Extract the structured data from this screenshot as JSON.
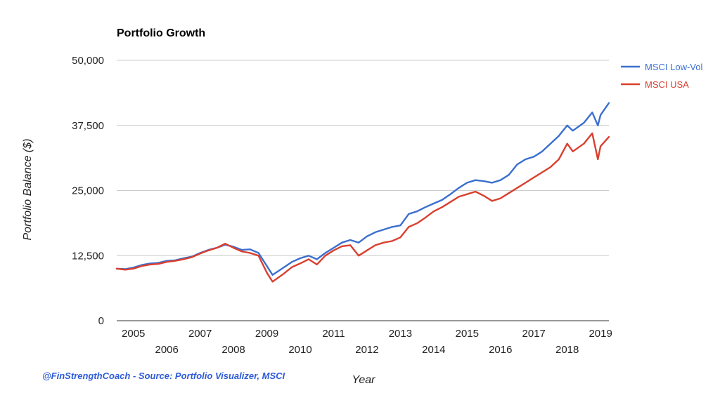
{
  "chart_data": {
    "type": "line",
    "title": "Portfolio Growth",
    "xlabel": "Year",
    "ylabel": "Portfolio Balance ($)",
    "ylim": [
      0,
      50000
    ],
    "yticks": [
      0,
      12500,
      25000,
      37500,
      50000
    ],
    "ytick_labels": [
      "0",
      "12,500",
      "25,000",
      "37,500",
      "50,000"
    ],
    "xlim": [
      2004.5,
      2019.25
    ],
    "xticks_upper": [
      {
        "x": 2005,
        "label": "2005"
      },
      {
        "x": 2007,
        "label": "2007"
      },
      {
        "x": 2009,
        "label": "2009"
      },
      {
        "x": 2011,
        "label": "2011"
      },
      {
        "x": 2013,
        "label": "2013"
      },
      {
        "x": 2015,
        "label": "2015"
      },
      {
        "x": 2017,
        "label": "2017"
      },
      {
        "x": 2019,
        "label": "2019"
      }
    ],
    "xticks_lower": [
      {
        "x": 2006,
        "label": "2006"
      },
      {
        "x": 2008,
        "label": "2008"
      },
      {
        "x": 2010,
        "label": "2010"
      },
      {
        "x": 2012,
        "label": "2012"
      },
      {
        "x": 2014,
        "label": "2014"
      },
      {
        "x": 2016,
        "label": "2016"
      },
      {
        "x": 2018,
        "label": "2018"
      }
    ],
    "grid": true,
    "legend_position": "right",
    "series": [
      {
        "name": "MSCI Low-Vol",
        "color": "#3b6fce",
        "points": [
          [
            2004.5,
            10000
          ],
          [
            2004.75,
            9900
          ],
          [
            2005.0,
            10200
          ],
          [
            2005.25,
            10700
          ],
          [
            2005.5,
            11000
          ],
          [
            2005.75,
            11100
          ],
          [
            2006.0,
            11500
          ],
          [
            2006.25,
            11600
          ],
          [
            2006.5,
            12000
          ],
          [
            2006.75,
            12300
          ],
          [
            2007.0,
            13000
          ],
          [
            2007.25,
            13600
          ],
          [
            2007.5,
            14000
          ],
          [
            2007.75,
            14600
          ],
          [
            2008.0,
            14200
          ],
          [
            2008.25,
            13600
          ],
          [
            2008.5,
            13700
          ],
          [
            2008.75,
            13000
          ],
          [
            2009.0,
            10500
          ],
          [
            2009.17,
            8800
          ],
          [
            2009.5,
            10200
          ],
          [
            2009.75,
            11300
          ],
          [
            2010.0,
            12000
          ],
          [
            2010.25,
            12500
          ],
          [
            2010.5,
            11800
          ],
          [
            2010.75,
            13000
          ],
          [
            2011.0,
            14000
          ],
          [
            2011.25,
            15000
          ],
          [
            2011.5,
            15500
          ],
          [
            2011.75,
            15000
          ],
          [
            2012.0,
            16200
          ],
          [
            2012.25,
            17000
          ],
          [
            2012.5,
            17500
          ],
          [
            2012.75,
            18000
          ],
          [
            2013.0,
            18300
          ],
          [
            2013.25,
            20500
          ],
          [
            2013.5,
            21000
          ],
          [
            2013.75,
            21800
          ],
          [
            2014.0,
            22500
          ],
          [
            2014.25,
            23200
          ],
          [
            2014.5,
            24300
          ],
          [
            2014.75,
            25500
          ],
          [
            2015.0,
            26500
          ],
          [
            2015.25,
            27000
          ],
          [
            2015.5,
            26800
          ],
          [
            2015.75,
            26500
          ],
          [
            2016.0,
            27000
          ],
          [
            2016.25,
            28000
          ],
          [
            2016.5,
            30000
          ],
          [
            2016.75,
            31000
          ],
          [
            2017.0,
            31500
          ],
          [
            2017.25,
            32500
          ],
          [
            2017.5,
            34000
          ],
          [
            2017.75,
            35500
          ],
          [
            2018.0,
            37500
          ],
          [
            2018.17,
            36500
          ],
          [
            2018.5,
            38000
          ],
          [
            2018.75,
            40000
          ],
          [
            2018.92,
            37500
          ],
          [
            2019.0,
            39500
          ],
          [
            2019.25,
            41800
          ]
        ]
      },
      {
        "name": "MSCI USA",
        "color": "#d9402f",
        "points": [
          [
            2004.5,
            10000
          ],
          [
            2004.75,
            9800
          ],
          [
            2005.0,
            10000
          ],
          [
            2005.25,
            10500
          ],
          [
            2005.5,
            10800
          ],
          [
            2005.75,
            10900
          ],
          [
            2006.0,
            11300
          ],
          [
            2006.25,
            11500
          ],
          [
            2006.5,
            11800
          ],
          [
            2006.75,
            12200
          ],
          [
            2007.0,
            12900
          ],
          [
            2007.25,
            13500
          ],
          [
            2007.5,
            14000
          ],
          [
            2007.75,
            14800
          ],
          [
            2008.0,
            14000
          ],
          [
            2008.25,
            13300
          ],
          [
            2008.5,
            13000
          ],
          [
            2008.75,
            12500
          ],
          [
            2009.0,
            9200
          ],
          [
            2009.17,
            7500
          ],
          [
            2009.5,
            9000
          ],
          [
            2009.75,
            10300
          ],
          [
            2010.0,
            11000
          ],
          [
            2010.25,
            11800
          ],
          [
            2010.5,
            10800
          ],
          [
            2010.75,
            12500
          ],
          [
            2011.0,
            13500
          ],
          [
            2011.25,
            14300
          ],
          [
            2011.5,
            14500
          ],
          [
            2011.75,
            12500
          ],
          [
            2012.0,
            13500
          ],
          [
            2012.25,
            14500
          ],
          [
            2012.5,
            15000
          ],
          [
            2012.75,
            15300
          ],
          [
            2013.0,
            16000
          ],
          [
            2013.25,
            18000
          ],
          [
            2013.5,
            18700
          ],
          [
            2013.75,
            19800
          ],
          [
            2014.0,
            21000
          ],
          [
            2014.25,
            21800
          ],
          [
            2014.5,
            22800
          ],
          [
            2014.75,
            23800
          ],
          [
            2015.0,
            24300
          ],
          [
            2015.25,
            24800
          ],
          [
            2015.5,
            24000
          ],
          [
            2015.75,
            23000
          ],
          [
            2016.0,
            23500
          ],
          [
            2016.25,
            24500
          ],
          [
            2016.5,
            25500
          ],
          [
            2016.75,
            26500
          ],
          [
            2017.0,
            27500
          ],
          [
            2017.25,
            28500
          ],
          [
            2017.5,
            29500
          ],
          [
            2017.75,
            31000
          ],
          [
            2018.0,
            34000
          ],
          [
            2018.17,
            32500
          ],
          [
            2018.5,
            34000
          ],
          [
            2018.75,
            36000
          ],
          [
            2018.92,
            31000
          ],
          [
            2019.0,
            33500
          ],
          [
            2019.25,
            35300
          ]
        ]
      }
    ]
  },
  "footer": {
    "source": "@FinStrengthCoach - Source: Portfolio Visualizer, MSCI",
    "source_color": "#2e5bd6"
  }
}
